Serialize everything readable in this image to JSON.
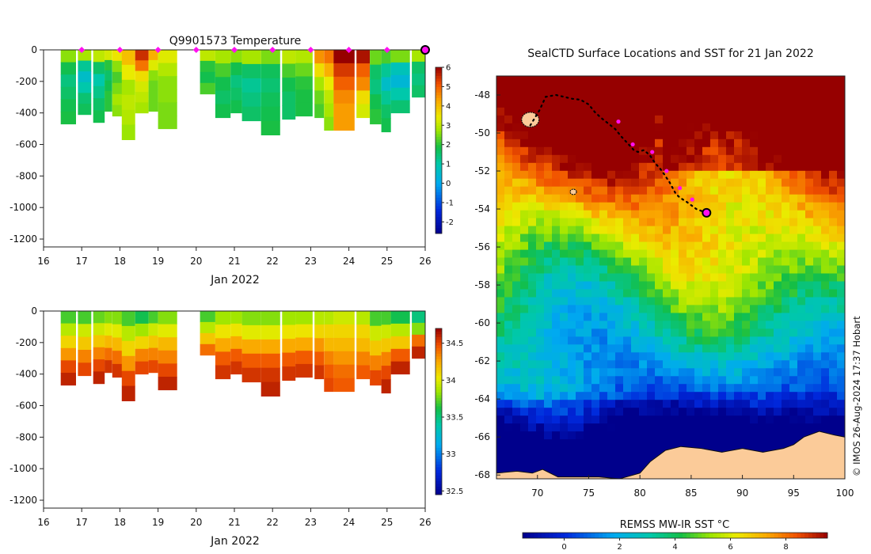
{
  "chart_data": [
    {
      "type": "heatmap",
      "title": "Q9901573  Temperature",
      "xlabel": "Jan 2022",
      "ylabel": "",
      "xlim": [
        16,
        26
      ],
      "ylim": [
        -1250,
        0
      ],
      "xticks": [
        16,
        17,
        18,
        19,
        20,
        21,
        22,
        23,
        24,
        25,
        26
      ],
      "yticks": [
        0,
        -200,
        -400,
        -600,
        -800,
        -1000,
        -1200
      ],
      "colorbar": {
        "range": [
          -2.6,
          6
        ],
        "ticks": [
          -2,
          -1,
          0,
          1,
          2,
          3,
          4,
          5,
          6
        ]
      },
      "surface_markers_x": [
        17,
        18,
        19,
        20,
        21,
        22,
        23,
        24,
        25
      ],
      "latest_marker_x": 26,
      "profiles": [
        {
          "t": 16.45,
          "w": 0.4,
          "d": 470,
          "v": [
            2.6,
            1.8,
            1.4,
            1.6,
            1.8,
            1.9
          ]
        },
        {
          "t": 16.9,
          "w": 0.35,
          "d": 410,
          "v": [
            2.8,
            1.2,
            0.6,
            1.0,
            1.5,
            1.7
          ]
        },
        {
          "t": 17.3,
          "w": 0.3,
          "d": 460,
          "v": [
            3.0,
            1.6,
            1.0,
            1.3,
            1.6,
            1.8
          ]
        },
        {
          "t": 17.6,
          "w": 0.2,
          "d": 390,
          "v": [
            3.2,
            2.0,
            1.6,
            1.8,
            2.0,
            2.0
          ]
        },
        {
          "t": 17.8,
          "w": 0.3,
          "d": 420,
          "v": [
            3.5,
            2.6,
            2.2,
            2.5,
            2.8,
            2.6
          ]
        },
        {
          "t": 18.05,
          "w": 0.35,
          "d": 570,
          "v": [
            4.0,
            3.4,
            2.8,
            3.0,
            2.9,
            2.7
          ]
        },
        {
          "t": 18.4,
          "w": 0.35,
          "d": 400,
          "v": [
            5.5,
            4.8,
            3.6,
            3.2,
            3.0,
            2.8
          ]
        },
        {
          "t": 18.75,
          "w": 0.25,
          "d": 390,
          "v": [
            4.2,
            3.3,
            2.6,
            2.4,
            2.4,
            2.4
          ]
        },
        {
          "t": 19.0,
          "w": 0.5,
          "d": 500,
          "v": [
            3.3,
            2.9,
            2.6,
            2.6,
            2.5,
            2.5
          ]
        },
        {
          "t": 20.1,
          "w": 0.4,
          "d": 280,
          "v": [
            3.0,
            2.0,
            1.8,
            2.2
          ]
        },
        {
          "t": 20.5,
          "w": 0.4,
          "d": 430,
          "v": [
            2.8,
            2.2,
            1.8,
            1.6,
            1.8
          ]
        },
        {
          "t": 20.9,
          "w": 0.3,
          "d": 400,
          "v": [
            2.6,
            1.8,
            1.4,
            1.6,
            1.8
          ]
        },
        {
          "t": 21.2,
          "w": 0.5,
          "d": 450,
          "v": [
            2.8,
            1.6,
            1.2,
            1.4,
            1.6
          ]
        },
        {
          "t": 21.7,
          "w": 0.5,
          "d": 540,
          "v": [
            2.5,
            1.7,
            1.5,
            1.7,
            1.8,
            1.9
          ]
        },
        {
          "t": 22.25,
          "w": 0.35,
          "d": 440,
          "v": [
            3.0,
            2.2,
            1.8,
            1.6,
            1.6
          ]
        },
        {
          "t": 22.6,
          "w": 0.45,
          "d": 420,
          "v": [
            2.9,
            2.4,
            2.0,
            1.9,
            1.9
          ]
        },
        {
          "t": 23.1,
          "w": 0.25,
          "d": 430,
          "v": [
            4.5,
            3.6,
            2.8,
            2.4,
            2.2
          ]
        },
        {
          "t": 23.35,
          "w": 0.25,
          "d": 510,
          "v": [
            4.8,
            4.2,
            3.4,
            3.0,
            2.8,
            2.6
          ]
        },
        {
          "t": 23.6,
          "w": 0.55,
          "d": 510,
          "v": [
            6.0,
            5.4,
            5.0,
            4.6,
            4.4,
            4.4
          ]
        },
        {
          "t": 24.2,
          "w": 0.35,
          "d": 430,
          "v": [
            5.8,
            5.0,
            4.6,
            3.6,
            3.2
          ]
        },
        {
          "t": 24.55,
          "w": 0.3,
          "d": 470,
          "v": [
            2.4,
            1.6,
            1.4,
            1.8,
            2.0
          ]
        },
        {
          "t": 24.85,
          "w": 0.25,
          "d": 520,
          "v": [
            2.2,
            1.2,
            0.6,
            1.2,
            1.6,
            1.8
          ]
        },
        {
          "t": 25.1,
          "w": 0.5,
          "d": 400,
          "v": [
            2.5,
            0.8,
            0.4,
            1.0,
            1.5
          ]
        },
        {
          "t": 25.65,
          "w": 0.35,
          "d": 300,
          "v": [
            2.8,
            1.6,
            1.4,
            1.6
          ]
        }
      ]
    },
    {
      "type": "heatmap",
      "title": "",
      "xlabel": "Jan 2022",
      "ylabel": "",
      "xlim": [
        16,
        26
      ],
      "ylim": [
        -1250,
        0
      ],
      "xticks": [
        16,
        17,
        18,
        19,
        20,
        21,
        22,
        23,
        24,
        25,
        26
      ],
      "yticks": [
        0,
        -200,
        -400,
        -600,
        -800,
        -1000,
        -1200
      ],
      "colorbar": {
        "range": [
          32.45,
          34.7
        ],
        "ticks": [
          32.5,
          33,
          33.5,
          34,
          34.5
        ]
      },
      "profiles": [
        {
          "t": 16.45,
          "w": 0.4,
          "d": 470,
          "v": [
            33.7,
            33.9,
            34.1,
            34.3,
            34.5,
            34.6
          ]
        },
        {
          "t": 16.9,
          "w": 0.35,
          "d": 410,
          "v": [
            33.7,
            33.95,
            34.15,
            34.35,
            34.5
          ]
        },
        {
          "t": 17.3,
          "w": 0.3,
          "d": 460,
          "v": [
            33.75,
            33.95,
            34.15,
            34.35,
            34.5,
            34.6
          ]
        },
        {
          "t": 17.6,
          "w": 0.2,
          "d": 390,
          "v": [
            33.8,
            34.0,
            34.2,
            34.4,
            34.55
          ]
        },
        {
          "t": 17.8,
          "w": 0.3,
          "d": 420,
          "v": [
            33.8,
            34.0,
            34.2,
            34.4,
            34.55
          ]
        },
        {
          "t": 18.05,
          "w": 0.35,
          "d": 570,
          "v": [
            33.7,
            33.9,
            34.1,
            34.3,
            34.5,
            34.6
          ]
        },
        {
          "t": 18.4,
          "w": 0.35,
          "d": 400,
          "v": [
            33.6,
            33.85,
            34.1,
            34.35,
            34.5
          ]
        },
        {
          "t": 18.75,
          "w": 0.25,
          "d": 390,
          "v": [
            33.7,
            33.95,
            34.15,
            34.35,
            34.5
          ]
        },
        {
          "t": 19.0,
          "w": 0.5,
          "d": 500,
          "v": [
            33.8,
            34.0,
            34.2,
            34.35,
            34.5,
            34.6
          ]
        },
        {
          "t": 20.1,
          "w": 0.4,
          "d": 280,
          "v": [
            33.7,
            33.9,
            34.15,
            34.4
          ]
        },
        {
          "t": 20.5,
          "w": 0.4,
          "d": 430,
          "v": [
            33.85,
            34.05,
            34.25,
            34.45,
            34.55
          ]
        },
        {
          "t": 20.9,
          "w": 0.3,
          "d": 400,
          "v": [
            33.85,
            34.05,
            34.25,
            34.45,
            34.55
          ]
        },
        {
          "t": 21.2,
          "w": 0.5,
          "d": 450,
          "v": [
            33.8,
            34.0,
            34.25,
            34.45,
            34.55
          ]
        },
        {
          "t": 21.7,
          "w": 0.5,
          "d": 540,
          "v": [
            33.8,
            34.0,
            34.25,
            34.45,
            34.55,
            34.6
          ]
        },
        {
          "t": 22.25,
          "w": 0.35,
          "d": 440,
          "v": [
            33.85,
            34.05,
            34.25,
            34.45,
            34.55
          ]
        },
        {
          "t": 22.6,
          "w": 0.45,
          "d": 420,
          "v": [
            33.85,
            34.05,
            34.25,
            34.45,
            34.55
          ]
        },
        {
          "t": 23.1,
          "w": 0.25,
          "d": 430,
          "v": [
            33.9,
            34.1,
            34.3,
            34.45,
            34.55
          ]
        },
        {
          "t": 23.35,
          "w": 0.25,
          "d": 510,
          "v": [
            33.9,
            34.1,
            34.2,
            34.35,
            34.45,
            34.5
          ]
        },
        {
          "t": 23.6,
          "w": 0.55,
          "d": 510,
          "v": [
            33.95,
            34.1,
            34.2,
            34.3,
            34.4,
            34.45
          ]
        },
        {
          "t": 24.2,
          "w": 0.35,
          "d": 430,
          "v": [
            33.9,
            34.1,
            34.2,
            34.35,
            34.45
          ]
        },
        {
          "t": 24.55,
          "w": 0.3,
          "d": 470,
          "v": [
            33.7,
            33.95,
            34.15,
            34.35,
            34.5
          ]
        },
        {
          "t": 24.85,
          "w": 0.25,
          "d": 520,
          "v": [
            33.7,
            33.95,
            34.15,
            34.35,
            34.5,
            34.6
          ]
        },
        {
          "t": 25.1,
          "w": 0.5,
          "d": 400,
          "v": [
            33.6,
            33.9,
            34.15,
            34.45,
            34.6
          ]
        },
        {
          "t": 25.65,
          "w": 0.35,
          "d": 300,
          "v": [
            33.5,
            33.8,
            34.4,
            34.6
          ]
        }
      ]
    },
    {
      "type": "heatmap",
      "title": "SealCTD Surface Locations and SST for 21 Jan 2022",
      "xlabel": "",
      "ylabel": "",
      "xlim": [
        66,
        100
      ],
      "ylim": [
        -68.2,
        -47
      ],
      "xticks": [
        70,
        75,
        80,
        85,
        90,
        95,
        100
      ],
      "yticks": [
        -48,
        -50,
        -52,
        -54,
        -56,
        -58,
        -60,
        -62,
        -64,
        -66,
        -68
      ],
      "colorbar": {
        "label": "REMSS MW-IR SST °C",
        "range": [
          -1.5,
          9.5
        ],
        "ticks": [
          0,
          2,
          4,
          6,
          8
        ]
      },
      "track_lon": [
        69.3,
        70.2,
        70.8,
        71.8,
        72.6,
        73.4,
        74.2,
        75.0,
        75.6,
        76.2,
        76.9,
        77.6,
        78.2,
        78.9,
        79.4,
        79.8,
        80.4,
        81.0,
        81.5,
        82.0,
        82.4,
        82.9,
        83.2,
        83.5,
        83.9,
        84.5,
        85.0,
        85.5,
        86.0,
        86.5
      ],
      "track_lat": [
        -49.6,
        -48.8,
        -48.1,
        -48.0,
        -48.1,
        -48.2,
        -48.25,
        -48.5,
        -48.9,
        -49.2,
        -49.5,
        -49.8,
        -50.2,
        -50.6,
        -50.9,
        -51.0,
        -50.9,
        -51.2,
        -51.6,
        -51.9,
        -52.2,
        -52.6,
        -52.9,
        -53.2,
        -53.4,
        -53.6,
        -53.8,
        -54.0,
        -54.1,
        -54.3
      ],
      "daily_lon": [
        77.9,
        79.3,
        81.2,
        82.6,
        83.9,
        85.1
      ],
      "daily_lat": [
        -49.4,
        -50.6,
        -51.0,
        -52.0,
        -52.9,
        -53.5
      ],
      "latest_lon": 86.5,
      "latest_lat": -54.2,
      "islands": [
        {
          "lon": 69.3,
          "lat": -49.3
        },
        {
          "lon": 73.5,
          "lat": -53.1
        }
      ],
      "antarctica_coast": [
        [
          66,
          -67.9
        ],
        [
          68,
          -67.8
        ],
        [
          69.5,
          -67.9
        ],
        [
          70.5,
          -67.7
        ],
        [
          72,
          -68.1
        ],
        [
          76,
          -68.1
        ],
        [
          78,
          -68.2
        ],
        [
          80,
          -67.9
        ],
        [
          81,
          -67.3
        ],
        [
          82.5,
          -66.7
        ],
        [
          84,
          -66.5
        ],
        [
          86,
          -66.6
        ],
        [
          88,
          -66.8
        ],
        [
          90,
          -66.6
        ],
        [
          92,
          -66.8
        ],
        [
          94,
          -66.6
        ],
        [
          95,
          -66.4
        ],
        [
          96,
          -66.0
        ],
        [
          97.5,
          -65.7
        ],
        [
          99,
          -65.9
        ],
        [
          100,
          -66.0
        ]
      ]
    }
  ],
  "credit": "© IMOS 26-Aug-2024 17:37 Hobart"
}
